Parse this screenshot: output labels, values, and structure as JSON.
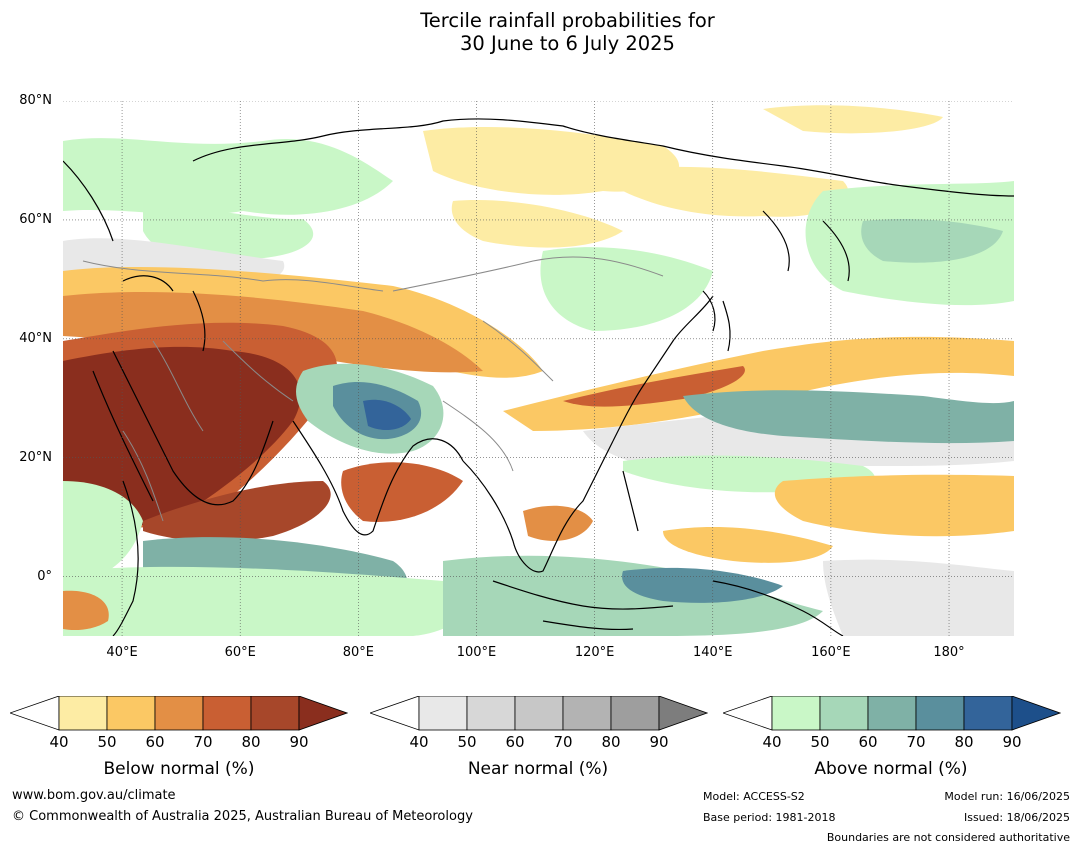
{
  "title": {
    "line1": "Tercile rainfall probabilities for",
    "line2": "30 June to 6 July 2025"
  },
  "map": {
    "lat_labels": [
      "80°N",
      "60°N",
      "40°N",
      "20°N",
      "0°"
    ],
    "lon_labels": [
      "40°E",
      "60°E",
      "80°E",
      "100°E",
      "120°E",
      "140°E",
      "160°E",
      "180°"
    ],
    "extent": {
      "lon": [
        30,
        191
      ],
      "lat": [
        -10,
        80
      ]
    },
    "colors": {
      "coastline": "#000000",
      "boundaries": "#8a8a8a",
      "gridlines": "#555555"
    }
  },
  "legends": [
    {
      "label": "Below normal (%)",
      "ticks": [
        "40",
        "50",
        "60",
        "70",
        "80",
        "90"
      ],
      "colors": [
        "#fdeca4",
        "#fbc864",
        "#e38f45",
        "#c95f33",
        "#a7472a",
        "#8a2e1e"
      ]
    },
    {
      "label": "Near normal (%)",
      "ticks": [
        "40",
        "50",
        "60",
        "70",
        "80",
        "90"
      ],
      "colors": [
        "#e8e8e8",
        "#d7d7d7",
        "#c7c7c7",
        "#b3b3b3",
        "#9e9e9e",
        "#7d7d7d"
      ]
    },
    {
      "label": "Above normal (%)",
      "ticks": [
        "40",
        "50",
        "60",
        "70",
        "80",
        "90"
      ],
      "colors": [
        "#c9f7c7",
        "#a6d7b8",
        "#7fb1a6",
        "#5a8f9d",
        "#33649a",
        "#1d4f8a"
      ]
    }
  ],
  "footer": {
    "website": "www.bom.gov.au/climate",
    "copyright": "© Commonwealth of Australia 2025, Australian Bureau of Meteorology",
    "model": "Model: ACCESS-S2",
    "base_period": "Base period: 1981-2018",
    "model_run": "Model run: 16/06/2025",
    "issued": "Issued: 18/06/2025",
    "disclaimer": "Boundaries are not considered authoritative"
  }
}
